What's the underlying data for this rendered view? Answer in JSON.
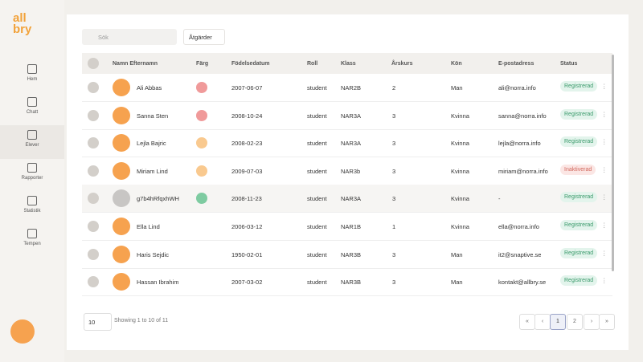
{
  "logo": {
    "top": "all",
    "bottom": "bry"
  },
  "nav": [
    "Hem",
    "Chatt",
    "Elever",
    "Rapporter",
    "Statistik",
    "Tempen"
  ],
  "toolbar": {
    "search_placeholder": "Sök",
    "actions_button": "Åtgärder"
  },
  "table": {
    "headers": [
      "Namn Efternamn",
      "Färg",
      "Födelsedatum",
      "Roll",
      "Klass",
      "Årskurs",
      "Kön",
      "E-postadress",
      "Status"
    ],
    "rows": [
      {
        "name": "Ali Abbas",
        "color": "#f09a9a",
        "birthdate": "2007-06-07",
        "role": "student",
        "class": "NAR2B",
        "grade": "2",
        "gender": "Man",
        "email": "ali@norra.info",
        "status": "Registrerad"
      },
      {
        "name": "Sanna Sten",
        "color": "#f09a9a",
        "birthdate": "2008-10-24",
        "role": "student",
        "class": "NAR3A",
        "grade": "3",
        "gender": "Kvinna",
        "email": "sanna@norra.info",
        "status": "Registrerad"
      },
      {
        "name": "Lejla Bajric",
        "color": "#f9c98f",
        "birthdate": "2008-02-23",
        "role": "student",
        "class": "NAR3A",
        "grade": "3",
        "gender": "Kvinna",
        "email": "lejla@norra.info",
        "status": "Registrerad"
      },
      {
        "name": "Miriam Lind",
        "color": "#f9c98f",
        "birthdate": "2009-07-03",
        "role": "student",
        "class": "NAR3b",
        "grade": "3",
        "gender": "Kvinna",
        "email": "miriam@norra.info",
        "status": "Inaktiverad"
      },
      {
        "name": "g7b4hRfqxhWH",
        "color": "#7ecba1",
        "birthdate": "2008-11-23",
        "role": "student",
        "class": "NAR3A",
        "grade": "3",
        "gender": "Kvinna",
        "email": "-",
        "status": "Registrerad"
      },
      {
        "name": "Ella Lind",
        "birthdate": "2006-03-12",
        "role": "student",
        "class": "NAR1B",
        "grade": "1",
        "gender": "Kvinna",
        "email": "ella@norra.info",
        "status": "Registrerad"
      },
      {
        "name": "Haris Sejdic",
        "birthdate": "1950-02-01",
        "role": "student",
        "class": "NAR3B",
        "grade": "3",
        "gender": "Man",
        "email": "it2@snaptive.se",
        "status": "Registrerad"
      },
      {
        "name": "Hassan Ibrahim",
        "birthdate": "2007-03-02",
        "role": "student",
        "class": "NAR3B",
        "grade": "3",
        "gender": "Man",
        "email": "kontakt@allbry.se",
        "status": "Registrerad"
      }
    ]
  },
  "footer": {
    "page_size": "10",
    "summary": "Showing 1 to 10 of 11",
    "pages": [
      "1",
      "2"
    ]
  }
}
